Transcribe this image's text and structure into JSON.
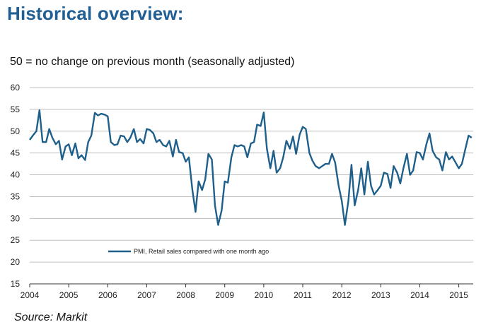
{
  "header": {
    "title": "Historical overview:",
    "subtitle": "50 = no change on previous month  (seasonally adjusted)"
  },
  "footer": {
    "source": "Source: Markit"
  },
  "colors": {
    "series": "#1f5f8b",
    "grid": "#bfbfbf",
    "title": "#1f5f94"
  },
  "chart_data": {
    "type": "line",
    "title": "",
    "xlabel": "",
    "ylabel": "",
    "ylim": [
      15,
      60
    ],
    "yticks": [
      15,
      20,
      25,
      30,
      35,
      40,
      45,
      50,
      55,
      60
    ],
    "xlim": [
      2004.0,
      2015.37
    ],
    "xticks": [
      "2004",
      "2005",
      "2006",
      "2007",
      "2008",
      "2009",
      "2010",
      "2011",
      "2012",
      "2013",
      "2014",
      "2015"
    ],
    "grid": "horizontal",
    "legend_position": "bottom-center",
    "series": [
      {
        "name": "PMI, Retail sales compared with one month ago",
        "color": "#1f5f8b",
        "x": [
          2004.0,
          2004.08,
          2004.17,
          2004.25,
          2004.33,
          2004.42,
          2004.5,
          2004.58,
          2004.67,
          2004.75,
          2004.83,
          2004.92,
          2005.0,
          2005.08,
          2005.17,
          2005.25,
          2005.33,
          2005.42,
          2005.5,
          2005.58,
          2005.67,
          2005.75,
          2005.83,
          2005.92,
          2006.0,
          2006.08,
          2006.17,
          2006.25,
          2006.33,
          2006.42,
          2006.5,
          2006.58,
          2006.67,
          2006.75,
          2006.83,
          2006.92,
          2007.0,
          2007.08,
          2007.17,
          2007.25,
          2007.33,
          2007.42,
          2007.5,
          2007.58,
          2007.67,
          2007.75,
          2007.83,
          2007.92,
          2008.0,
          2008.08,
          2008.17,
          2008.25,
          2008.33,
          2008.42,
          2008.5,
          2008.58,
          2008.67,
          2008.75,
          2008.83,
          2008.92,
          2009.0,
          2009.08,
          2009.17,
          2009.25,
          2009.33,
          2009.42,
          2009.5,
          2009.58,
          2009.67,
          2009.75,
          2009.83,
          2009.92,
          2010.0,
          2010.08,
          2010.17,
          2010.25,
          2010.33,
          2010.42,
          2010.5,
          2010.58,
          2010.67,
          2010.75,
          2010.83,
          2010.92,
          2011.0,
          2011.08,
          2011.17,
          2011.25,
          2011.33,
          2011.42,
          2011.5,
          2011.58,
          2011.67,
          2011.75,
          2011.83,
          2011.92,
          2012.0,
          2012.08,
          2012.17,
          2012.25,
          2012.33,
          2012.42,
          2012.5,
          2012.58,
          2012.67,
          2012.75,
          2012.83,
          2012.92,
          2013.0,
          2013.08,
          2013.17,
          2013.25,
          2013.33,
          2013.42,
          2013.5,
          2013.58,
          2013.67,
          2013.75,
          2013.83,
          2013.92,
          2014.0,
          2014.08,
          2014.17,
          2014.25,
          2014.33,
          2014.42,
          2014.5,
          2014.58,
          2014.67,
          2014.75,
          2014.83,
          2014.92,
          2015.0,
          2015.08,
          2015.17,
          2015.25,
          2015.33
        ],
        "values": [
          48.0,
          49.0,
          50.0,
          54.8,
          47.5,
          47.5,
          50.5,
          48.5,
          47.0,
          47.8,
          43.5,
          46.5,
          47.0,
          44.5,
          47.2,
          43.8,
          44.5,
          43.4,
          47.5,
          49.0,
          54.2,
          53.6,
          54.0,
          53.8,
          53.4,
          47.5,
          46.8,
          47.0,
          49.0,
          48.8,
          47.5,
          48.5,
          50.5,
          47.5,
          48.2,
          47.2,
          50.5,
          50.3,
          49.5,
          47.5,
          48.0,
          46.8,
          46.5,
          47.8,
          44.2,
          48.0,
          45.2,
          45.0,
          43.0,
          44.0,
          36.5,
          31.5,
          38.5,
          36.5,
          39.0,
          44.8,
          43.5,
          33.0,
          28.5,
          31.8,
          38.5,
          38.2,
          44.0,
          46.8,
          46.5,
          46.8,
          46.5,
          44.0,
          47.2,
          47.5,
          51.5,
          51.2,
          54.3,
          46.0,
          41.5,
          45.5,
          40.5,
          41.5,
          44.0,
          47.8,
          46.0,
          48.8,
          44.8,
          49.2,
          51.0,
          50.5,
          45.0,
          43.2,
          42.0,
          41.5,
          42.0,
          42.5,
          42.5,
          44.8,
          42.8,
          37.5,
          34.0,
          28.5,
          34.0,
          42.3,
          33.0,
          36.5,
          41.5,
          35.5,
          43.0,
          37.5,
          35.5,
          36.5,
          37.5,
          40.5,
          40.2,
          37.0,
          42.0,
          40.5,
          38.0,
          41.5,
          44.8,
          40.0,
          41.0,
          45.2,
          45.0,
          43.5,
          47.0,
          49.5,
          45.5,
          44.0,
          43.5,
          41.0,
          45.2,
          43.5,
          44.2,
          42.8,
          41.5,
          42.5,
          46.0,
          49.0,
          48.5
        ]
      }
    ]
  }
}
